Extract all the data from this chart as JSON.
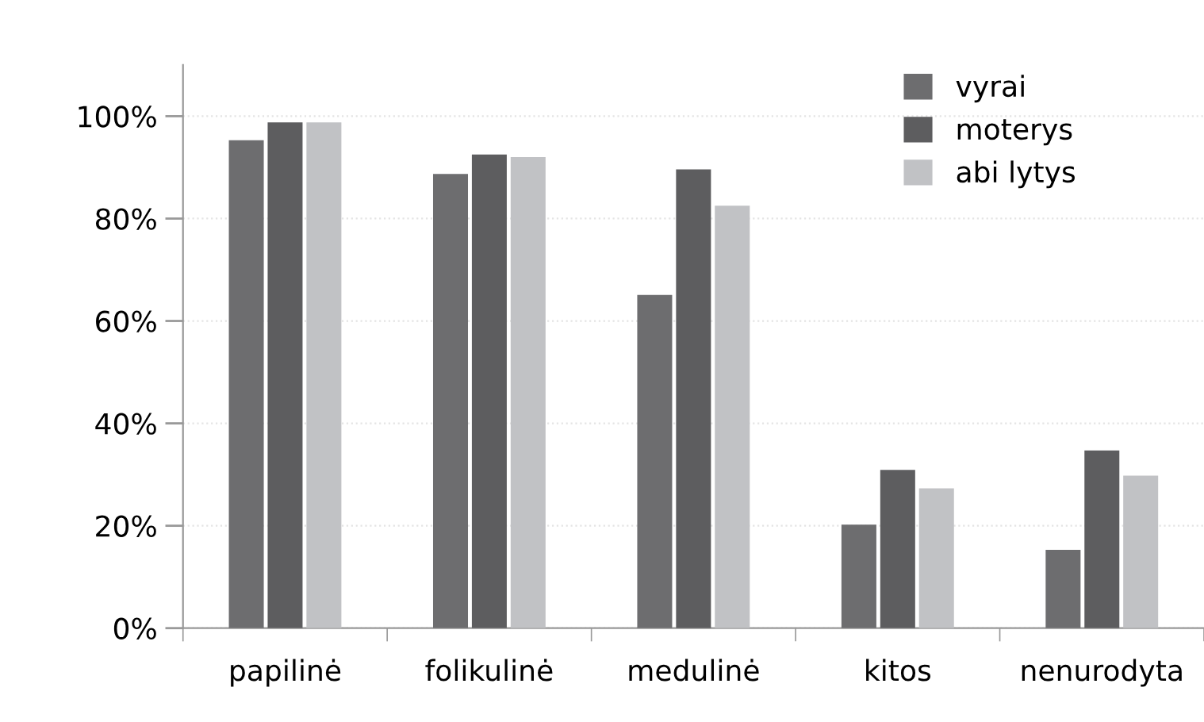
{
  "chart_data": {
    "type": "bar",
    "categories": [
      "papilinė",
      "folikulinė",
      "medulinė",
      "kitos",
      "nenurodyta"
    ],
    "series": [
      {
        "name": "vyrai",
        "color": "#6d6d6f",
        "values": [
          95.3,
          88.7,
          65.1,
          20.2,
          15.3
        ]
      },
      {
        "name": "moterys",
        "color": "#5d5d5f",
        "values": [
          98.8,
          92.5,
          89.6,
          30.9,
          34.7
        ]
      },
      {
        "name": "abi lytys",
        "color": "#c1c2c5",
        "values": [
          98.8,
          92.0,
          82.5,
          27.3,
          29.8
        ]
      }
    ],
    "ylim": [
      0,
      110
    ],
    "yticks": [
      {
        "value": 0,
        "label": "0%"
      },
      {
        "value": 20,
        "label": "20%"
      },
      {
        "value": 40,
        "label": "40%"
      },
      {
        "value": 60,
        "label": "60%"
      },
      {
        "value": 80,
        "label": "80%"
      },
      {
        "value": 100,
        "label": "100%"
      }
    ],
    "grid": "y",
    "legend": "top right"
  }
}
